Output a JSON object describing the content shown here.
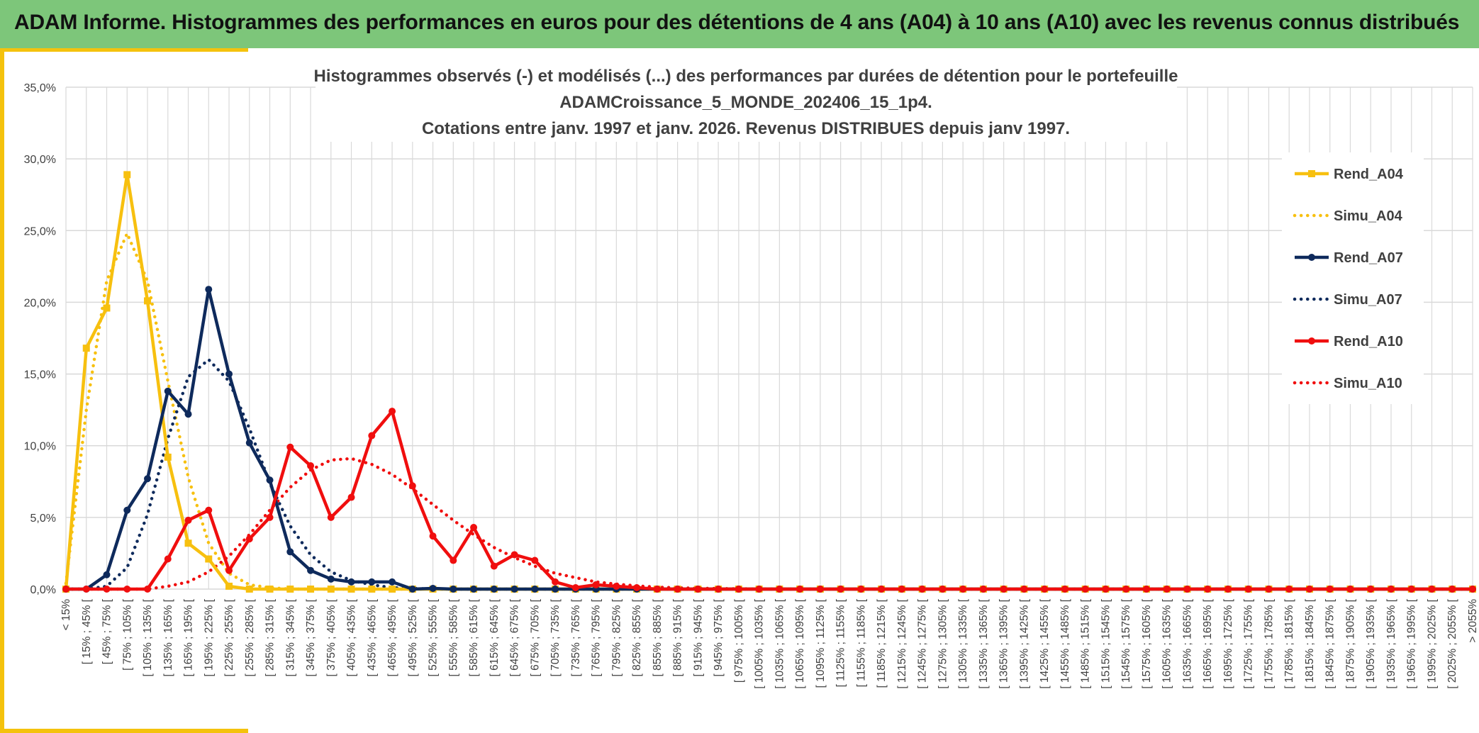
{
  "header": {
    "title": "ADAM Informe. Histogrammes des performances en euros pour des détentions de 4 ans (A04) à 10 ans (A10) avec les revenus connus distribués"
  },
  "colors": {
    "banner": "#7dc67a",
    "accent": "#f4c20d",
    "A04": "#f7c00f",
    "A07": "#0e2a5c",
    "A10": "#f00e0e",
    "grid": "#d9d9d9"
  },
  "chart_data": {
    "type": "line",
    "title_lines": [
      "Histogrammes observés (-) et modélisés (...) des performances par durées de détention pour le portefeuille",
      "ADAMCroissance_5_MONDE_202406_15_1p4.",
      "Cotations entre janv. 1997 et janv. 2026. Revenus DISTRIBUES depuis janv 1997."
    ],
    "xlabel": "",
    "ylabel": "",
    "ylim": [
      0,
      35
    ],
    "y_ticks": [
      "0,0%",
      "5,0%",
      "10,0%",
      "15,0%",
      "20,0%",
      "25,0%",
      "30,0%",
      "35,0%"
    ],
    "grid": true,
    "legend_position": "right",
    "categories": [
      "< 15%",
      "[ 15% ; 45% [",
      "[ 45% ; 75% [",
      "[ 75% ; 105% [",
      "[ 105% ; 135% [",
      "[ 135% ; 165% [",
      "[ 165% ; 195% [",
      "[ 195% ; 225% [",
      "[ 225% ; 255% [",
      "[ 255% ; 285% [",
      "[ 285% ; 315% [",
      "[ 315% ; 345% [",
      "[ 345% ; 375% [",
      "[ 375% ; 405% [",
      "[ 405% ; 435% [",
      "[ 435% ; 465% [",
      "[ 465% ; 495% [",
      "[ 495% ; 525% [",
      "[ 525% ; 555% [",
      "[ 555% ; 585% [",
      "[ 585% ; 615% [",
      "[ 615% ; 645% [",
      "[ 645% ; 675% [",
      "[ 675% ; 705% [",
      "[ 705% ; 735% [",
      "[ 735% ; 765% [",
      "[ 765% ; 795% [",
      "[ 795% ; 825% [",
      "[ 825% ; 855% [",
      "[ 855% ; 885% [",
      "[ 885% ; 915% [",
      "[ 915% ; 945% [",
      "[ 945% ; 975% [",
      "[ 975% ; 1005% [",
      "[ 1005% ; 1035% [",
      "[ 1035% ; 1065% [",
      "[ 1065% ; 1095% [",
      "[ 1095% ; 1125% [",
      "[ 1125% ; 1155% [",
      "[ 1155% ; 1185% [",
      "[ 1185% ; 1215% [",
      "[ 1215% ; 1245% [",
      "[ 1245% ; 1275% [",
      "[ 1275% ; 1305% [",
      "[ 1305% ; 1335% [",
      "[ 1335% ; 1365% [",
      "[ 1365% ; 1395% [",
      "[ 1395% ; 1425% [",
      "[ 1425% ; 1455% [",
      "[ 1455% ; 1485% [",
      "[ 1485% ; 1515% [",
      "[ 1515% ; 1545% [",
      "[ 1545% ; 1575% [",
      "[ 1575% ; 1605% [",
      "[ 1605% ; 1635% [",
      "[ 1635% ; 1665% [",
      "[ 1665% ; 1695% [",
      "[ 1695% ; 1725% [",
      "[ 1725% ; 1755% [",
      "[ 1755% ; 1785% [",
      "[ 1785% ; 1815% [",
      "[ 1815% ; 1845% [",
      "[ 1845% ; 1875% [",
      "[ 1875% ; 1905% [",
      "[ 1905% ; 1935% [",
      "[ 1935% ; 1965% [",
      "[ 1965% ; 1995% [",
      "[ 1995% ; 2025% [",
      "[ 2025% ; 2055% [",
      "> 2055%"
    ],
    "series": [
      {
        "name": "Rend_A04",
        "style": "solid",
        "marker": "square",
        "color": "#f7c00f",
        "values": [
          0,
          16.8,
          19.6,
          28.9,
          20.1,
          9.2,
          3.2,
          2.1,
          0.2,
          0,
          0,
          0,
          0,
          0,
          0,
          0,
          0,
          0,
          0,
          0,
          0,
          0,
          0,
          0,
          0,
          0,
          0,
          0,
          0,
          0,
          0,
          0,
          0,
          0,
          0,
          0,
          0,
          0,
          0,
          0,
          0,
          0,
          0,
          0,
          0,
          0,
          0,
          0,
          0,
          0,
          0,
          0,
          0,
          0,
          0,
          0,
          0,
          0,
          0,
          0,
          0,
          0,
          0,
          0,
          0,
          0,
          0,
          0,
          0,
          0
        ]
      },
      {
        "name": "Simu_A04",
        "style": "dotted",
        "marker": "none",
        "color": "#f7c00f",
        "values": [
          0.4,
          12.5,
          21.5,
          24.8,
          21.5,
          14.5,
          7.8,
          3.2,
          1.1,
          0.3,
          0.1,
          0,
          0,
          0,
          0,
          0,
          0,
          0,
          0,
          0,
          0,
          0,
          0,
          0,
          0,
          0,
          0,
          0,
          0,
          0,
          0,
          0,
          0,
          0,
          0,
          0,
          0,
          0,
          0,
          0,
          0,
          0,
          0,
          0,
          0,
          0,
          0,
          0,
          0,
          0,
          0,
          0,
          0,
          0,
          0,
          0,
          0,
          0,
          0,
          0,
          0,
          0,
          0,
          0,
          0,
          0,
          0,
          0,
          0,
          0
        ]
      },
      {
        "name": "Rend_A07",
        "style": "solid",
        "marker": "circle",
        "color": "#0e2a5c",
        "values": [
          0,
          0,
          1.0,
          5.5,
          7.7,
          13.8,
          12.2,
          20.9,
          15.0,
          10.2,
          7.6,
          2.6,
          1.3,
          0.7,
          0.5,
          0.5,
          0.5,
          0,
          0.05,
          0,
          0,
          0,
          0,
          0,
          0,
          0,
          0,
          0,
          0,
          0,
          0,
          0,
          0,
          0,
          0,
          0,
          0,
          0,
          0,
          0,
          0,
          0,
          0,
          0,
          0,
          0,
          0,
          0,
          0,
          0,
          0,
          0,
          0,
          0,
          0,
          0,
          0,
          0,
          0,
          0,
          0,
          0,
          0,
          0,
          0,
          0,
          0,
          0,
          0,
          0
        ]
      },
      {
        "name": "Simu_A07",
        "style": "dotted",
        "marker": "none",
        "color": "#0e2a5c",
        "values": [
          0,
          0,
          0.2,
          1.5,
          5.2,
          10.5,
          14.8,
          16.0,
          14.5,
          11.2,
          7.4,
          4.4,
          2.4,
          1.2,
          0.6,
          0.3,
          0.1,
          0.05,
          0,
          0,
          0,
          0,
          0,
          0,
          0,
          0,
          0,
          0,
          0,
          0,
          0,
          0,
          0,
          0,
          0,
          0,
          0,
          0,
          0,
          0,
          0,
          0,
          0,
          0,
          0,
          0,
          0,
          0,
          0,
          0,
          0,
          0,
          0,
          0,
          0,
          0,
          0,
          0,
          0,
          0,
          0,
          0,
          0,
          0,
          0,
          0,
          0,
          0,
          0,
          0
        ]
      },
      {
        "name": "Rend_A10",
        "style": "solid",
        "marker": "circle",
        "color": "#f00e0e",
        "values": [
          0,
          0,
          0,
          0,
          0,
          2.1,
          4.8,
          5.5,
          1.3,
          3.5,
          5.0,
          9.9,
          8.6,
          5.0,
          6.4,
          10.7,
          12.4,
          7.2,
          3.7,
          2.0,
          4.3,
          1.6,
          2.4,
          2.0,
          0.5,
          0.1,
          0.3,
          0.2,
          0.1,
          0,
          0,
          0,
          0,
          0,
          0,
          0,
          0,
          0,
          0,
          0,
          0,
          0,
          0,
          0,
          0,
          0,
          0,
          0,
          0,
          0,
          0,
          0,
          0,
          0,
          0,
          0,
          0,
          0,
          0,
          0,
          0,
          0,
          0,
          0,
          0,
          0,
          0,
          0,
          0,
          0
        ]
      },
      {
        "name": "Simu_A10",
        "style": "dotted",
        "marker": "none",
        "color": "#f00e0e",
        "values": [
          0,
          0,
          0,
          0,
          0,
          0.2,
          0.5,
          1.2,
          2.3,
          3.8,
          5.5,
          7.1,
          8.3,
          9.0,
          9.1,
          8.7,
          8.0,
          7.0,
          5.9,
          4.8,
          3.8,
          2.9,
          2.2,
          1.6,
          1.1,
          0.8,
          0.5,
          0.35,
          0.22,
          0.14,
          0.09,
          0.06,
          0.04,
          0.02,
          0.01,
          0,
          0,
          0,
          0,
          0,
          0,
          0,
          0,
          0,
          0,
          0,
          0,
          0,
          0,
          0,
          0,
          0,
          0,
          0,
          0,
          0,
          0,
          0,
          0,
          0,
          0,
          0,
          0,
          0,
          0,
          0,
          0,
          0,
          0,
          0
        ]
      }
    ]
  }
}
